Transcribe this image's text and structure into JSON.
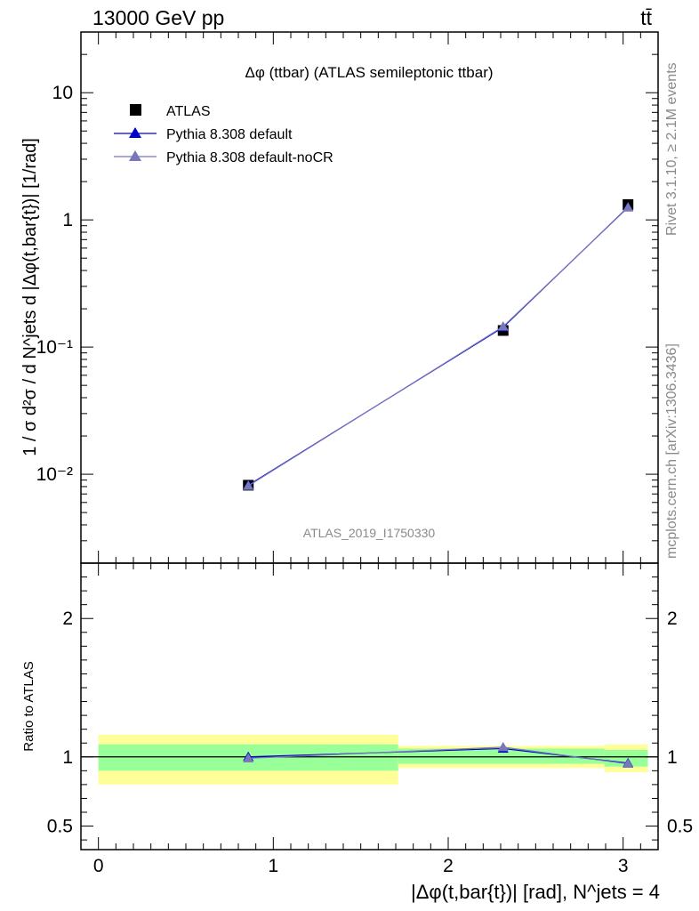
{
  "header": {
    "left": "13000 GeV pp",
    "right": "tt̄"
  },
  "side_labels": {
    "rivet": "Rivet 3.1.10, ≥ 2.1M events",
    "mcplots": "mcplots.cern.ch [arXiv:1306.3436]"
  },
  "watermark": "ATLAS_2019_I1750330",
  "colors": {
    "data": "#000000",
    "default": "#0000cc",
    "noCR": "#7777bb",
    "band_inner": "#99ff99",
    "band_outer": "#ffff99"
  },
  "chart_data": [
    {
      "type": "scatter",
      "title": "Δφ (ttbar) (ATLAS semileptonic ttbar)",
      "ylabel": "1 / σ d²σ / d N^jets d |Δφ(t,bar{t})| [1/rad]",
      "yscale": "log",
      "ylim": [
        0.002,
        30
      ],
      "xlim": [
        -0.1,
        3.2
      ],
      "ytick_labels": [
        "10⁻²",
        "10⁻¹",
        "1",
        "10"
      ],
      "legend_position": "top-left",
      "legend": [
        "ATLAS",
        "Pythia 8.308 default",
        "Pythia 8.308 default-noCR"
      ],
      "series": [
        {
          "name": "ATLAS",
          "marker": "square",
          "x": [
            0.857,
            2.314,
            3.028
          ],
          "y": [
            0.0082,
            0.135,
            1.32
          ]
        },
        {
          "name": "Pythia 8.308 default",
          "marker": "triangle",
          "x": [
            0.857,
            2.314,
            3.028
          ],
          "y": [
            0.0082,
            0.143,
            1.26
          ]
        },
        {
          "name": "Pythia 8.308 default-noCR",
          "marker": "triangle",
          "x": [
            0.857,
            2.314,
            3.028
          ],
          "y": [
            0.0081,
            0.145,
            1.25
          ]
        }
      ]
    },
    {
      "type": "scatter",
      "ylabel": "Ratio to ATLAS",
      "xlabel": "|Δφ(t,bar{t})| [rad], N^jets = 4",
      "xlim": [
        -0.1,
        3.2
      ],
      "ylim": [
        0.33,
        2.4
      ],
      "yticks": [
        0.5,
        1,
        2
      ],
      "ytick_labels": [
        "0.5",
        "1",
        "2"
      ],
      "xticks": [
        0,
        1,
        2,
        3
      ],
      "xtick_labels": [
        "0",
        "1",
        "2",
        "3"
      ],
      "reference_line": 1,
      "bins": [
        {
          "lo": 0.0,
          "hi": 1.714,
          "inner": [
            0.9,
            1.09
          ],
          "outer": [
            0.8,
            1.16
          ]
        },
        {
          "lo": 1.714,
          "hi": 2.893,
          "inner": [
            0.95,
            1.06
          ],
          "outer": [
            0.92,
            1.08
          ]
        },
        {
          "lo": 2.893,
          "hi": 3.1416,
          "inner": [
            0.93,
            1.05
          ],
          "outer": [
            0.89,
            1.09
          ]
        }
      ],
      "series": [
        {
          "name": "Pythia 8.308 default",
          "x": [
            0.857,
            2.314,
            3.028
          ],
          "y": [
            1.0,
            1.06,
            0.955
          ]
        },
        {
          "name": "Pythia 8.308 default-noCR",
          "x": [
            0.857,
            2.314,
            3.028
          ],
          "y": [
            0.99,
            1.07,
            0.95
          ]
        }
      ]
    }
  ]
}
